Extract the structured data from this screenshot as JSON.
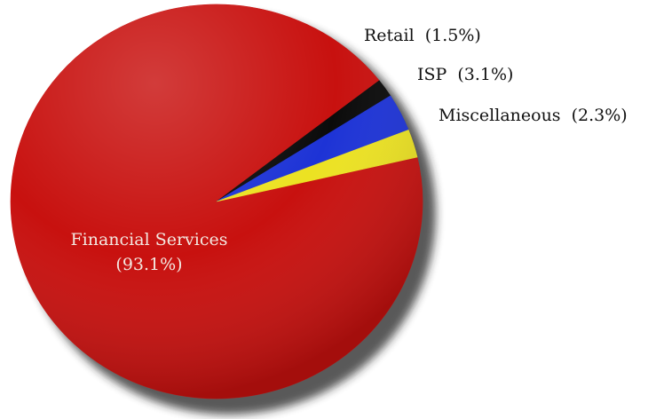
{
  "chart_data": {
    "type": "pie",
    "title": "",
    "slices": [
      {
        "label": "Financial Services",
        "value_text": "(93.1%)",
        "value": 93.1,
        "color": "#c8110f"
      },
      {
        "label": "Retail",
        "value_text": "(1.5%)",
        "value": 1.5,
        "color": "#0b0b0b"
      },
      {
        "label": "ISP",
        "value_text": "(3.1%)",
        "value": 3.1,
        "color": "#1d33d6"
      },
      {
        "label": "Miscellaneous",
        "value_text": "(2.3%)",
        "value": 2.3,
        "color": "#ece222"
      }
    ]
  }
}
